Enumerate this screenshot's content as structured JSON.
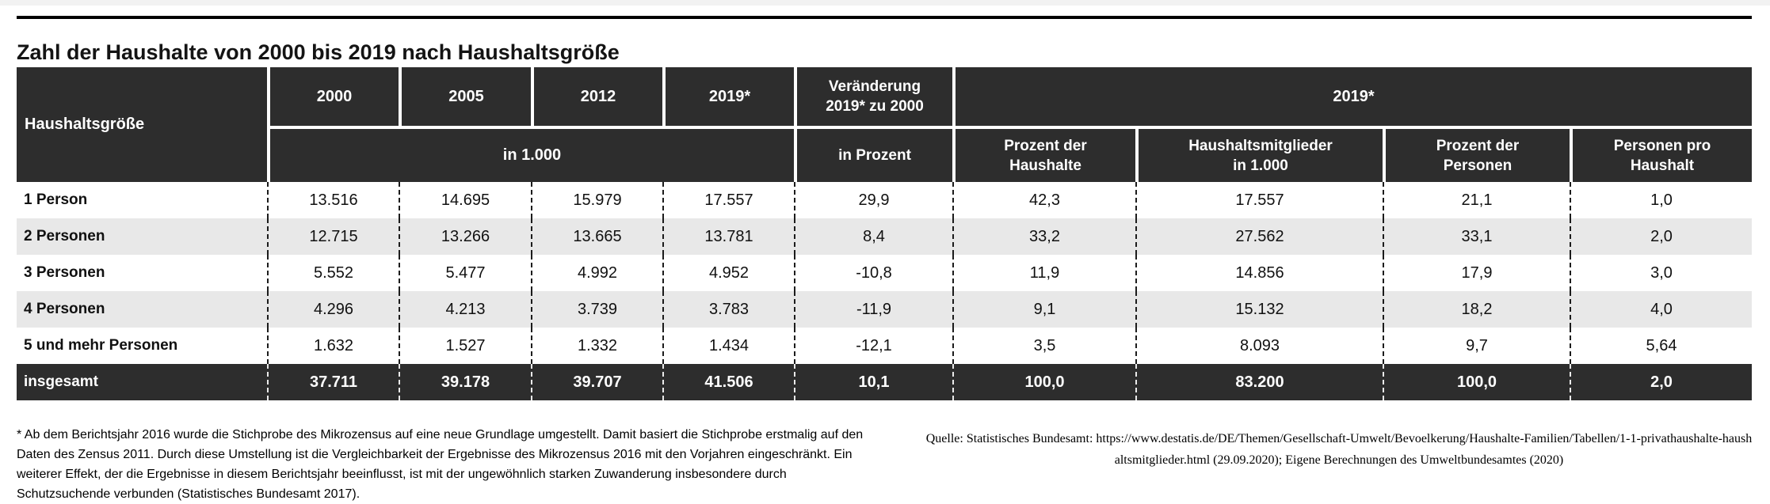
{
  "page": {
    "title": "Zahl der Haushalte von 2000 bis 2019 nach Haushaltsgröße"
  },
  "colors": {
    "header_bg": "#2d2d2d",
    "total_row_bg": "#2d2d2d",
    "alt_row_bg": "#e8e8e8",
    "rule": "#000000"
  },
  "table": {
    "corner_label": "Haushaltsgröße",
    "year_columns": [
      "2000",
      "2005",
      "2012",
      "2019*"
    ],
    "change_header": "Veränderung\n2019* zu 2000",
    "group_header": "2019*",
    "unit_years": "in 1.000",
    "unit_change": "in Prozent",
    "group_subheaders": [
      "Prozent der\nHaushalte",
      "Haushaltsmitglieder\nin 1.000",
      "Prozent der\nPersonen",
      "Personen pro\nHaushalt"
    ],
    "rows": [
      {
        "label": "1 Person",
        "values": [
          "13.516",
          "14.695",
          "15.979",
          "17.557",
          "29,9",
          "42,3",
          "17.557",
          "21,1",
          "1,0"
        ]
      },
      {
        "label": "2 Personen",
        "values": [
          "12.715",
          "13.266",
          "13.665",
          "13.781",
          "8,4",
          "33,2",
          "27.562",
          "33,1",
          "2,0"
        ]
      },
      {
        "label": "3 Personen",
        "values": [
          "5.552",
          "5.477",
          "4.992",
          "4.952",
          "-10,8",
          "11,9",
          "14.856",
          "17,9",
          "3,0"
        ]
      },
      {
        "label": "4 Personen",
        "values": [
          "4.296",
          "4.213",
          "3.739",
          "3.783",
          "-11,9",
          "9,1",
          "15.132",
          "18,2",
          "4,0"
        ]
      },
      {
        "label": "5 und mehr Personen",
        "values": [
          "1.632",
          "1.527",
          "1.332",
          "1.434",
          "-12,1",
          "3,5",
          "8.093",
          "9,7",
          "5,64"
        ]
      },
      {
        "label": "insgesamt",
        "values": [
          "37.711",
          "39.178",
          "39.707",
          "41.506",
          "10,1",
          "100,0",
          "83.200",
          "100,0",
          "2,0"
        ],
        "total": true
      }
    ]
  },
  "chart_data": {
    "type": "table",
    "title": "Zahl der Haushalte von 2000 bis 2019 nach Haushaltsgröße",
    "columns": [
      "Haushaltsgröße",
      "2000 in 1.000",
      "2005 in 1.000",
      "2012 in 1.000",
      "2019* in 1.000",
      "Veränderung 2019* zu 2000 in Prozent",
      "2019* Prozent der Haushalte",
      "2019* Haushaltsmitglieder in 1.000",
      "2019* Prozent der Personen",
      "2019* Personen pro Haushalt"
    ],
    "rows": [
      [
        "1 Person",
        13516,
        14695,
        15979,
        17557,
        29.9,
        42.3,
        17557,
        21.1,
        1.0
      ],
      [
        "2 Personen",
        12715,
        13266,
        13665,
        13781,
        8.4,
        33.2,
        27562,
        33.1,
        2.0
      ],
      [
        "3 Personen",
        5552,
        5477,
        4992,
        4952,
        -10.8,
        11.9,
        14856,
        17.9,
        3.0
      ],
      [
        "4 Personen",
        4296,
        4213,
        3739,
        3783,
        -11.9,
        9.1,
        15132,
        18.2,
        4.0
      ],
      [
        "5 und mehr Personen",
        1632,
        1527,
        1332,
        1434,
        -12.1,
        3.5,
        8093,
        9.7,
        5.64
      ],
      [
        "insgesamt",
        37711,
        39178,
        39707,
        41506,
        10.1,
        100.0,
        83200,
        100.0,
        2.0
      ]
    ]
  },
  "footnote": "* Ab dem Berichtsjahr 2016 wurde die Stichprobe des Mikrozensus auf eine neue Grundlage umgestellt. Damit basiert die Stichprobe erstmalig auf den Daten des Zensus 2011. Durch diese Umstellung ist die Vergleichbarkeit der Ergebnisse des Mikrozensus 2016 mit den Vorjahren eingeschränkt. Ein weiterer Effekt, der die Ergebnisse in diesem Berichtsjahr beeinflusst, ist mit der ungewöhnlich starken Zuwanderung insbesondere durch Schutzsuchende verbunden (Statistisches Bundesamt 2017).",
  "source": "Quelle: Statistisches Bundesamt: https://www.destatis.de/DE/Themen/Gesellschaft-Umwelt/Bevoelkerung/Haushalte-Familien/Tabellen/1-1-privathaushalte-haushaltsmitglieder.html (29.09.2020); Eigene Berechnungen des Umweltbundesamtes (2020)"
}
